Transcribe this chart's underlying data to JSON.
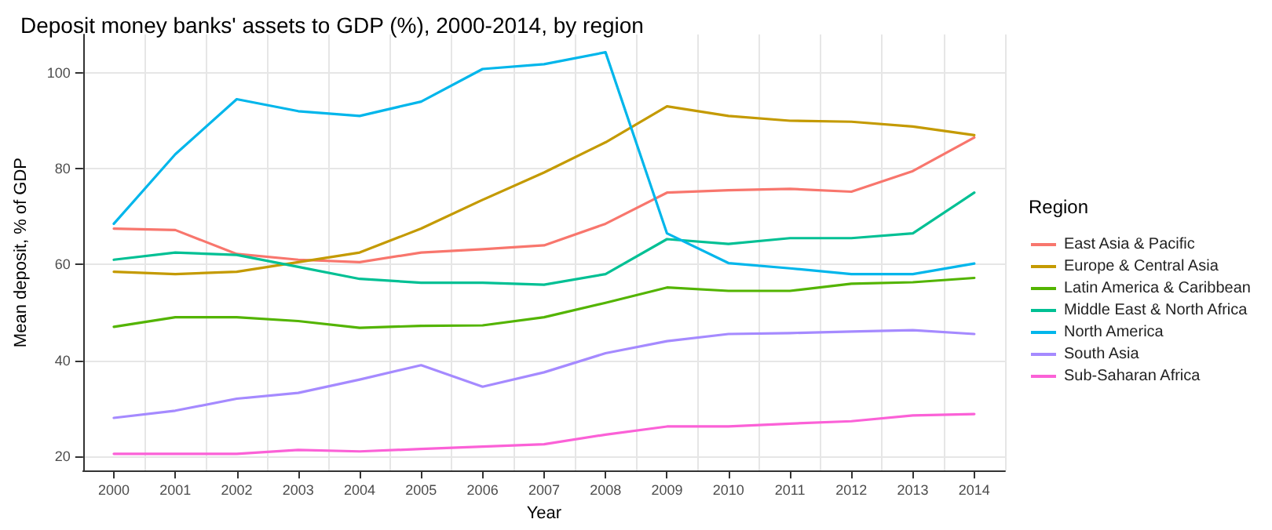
{
  "chart_data": {
    "type": "line",
    "title": "Deposit money banks' assets to GDP (%), 2000-2014, by region",
    "xlabel": "Year",
    "ylabel": "Mean deposit, % of GDP",
    "legend_title": "Region",
    "legend": "right",
    "grid": true,
    "marker": "none",
    "line_style": "solid",
    "categories": [
      "2000",
      "2001",
      "2002",
      "2003",
      "2004",
      "2005",
      "2006",
      "2007",
      "2008",
      "2009",
      "2010",
      "2011",
      "2012",
      "2013",
      "2014"
    ],
    "ylim": [
      17,
      108
    ],
    "yticks": [
      20,
      40,
      60,
      80,
      100
    ],
    "series": [
      {
        "name": "East Asia & Pacific",
        "color": "#f8766d",
        "values": [
          67.5,
          67.2,
          62.2,
          61,
          60.5,
          62.5,
          63.2,
          64,
          68.5,
          75,
          75.5,
          75.8,
          75.2,
          79.5,
          86.5
        ]
      },
      {
        "name": "Europe & Central Asia",
        "color": "#c49a00",
        "values": [
          58.5,
          58,
          58.5,
          60.5,
          62.5,
          67.5,
          73.5,
          79.2,
          85.5,
          93,
          91,
          90,
          89.8,
          88.8,
          87
        ]
      },
      {
        "name": "Latin America & Caribbean",
        "color": "#53b400",
        "values": [
          47,
          49,
          49,
          48.2,
          46.8,
          47.2,
          47.3,
          49,
          52,
          55.2,
          54.5,
          54.5,
          56,
          56.3,
          57.2
        ]
      },
      {
        "name": "Middle East & North Africa",
        "color": "#00c094",
        "values": [
          61,
          62.5,
          62,
          59.5,
          57,
          56.2,
          56.2,
          55.8,
          58,
          65.3,
          64.3,
          65.5,
          65.5,
          66.5,
          75
        ]
      },
      {
        "name": "North America",
        "color": "#00b6eb",
        "values": [
          68.5,
          83,
          94.5,
          92,
          91,
          94,
          100.8,
          101.8,
          104.3,
          66.5,
          60.3,
          59.2,
          58,
          58,
          60.2
        ]
      },
      {
        "name": "South Asia",
        "color": "#a58aff",
        "values": [
          28,
          29.5,
          32,
          33.2,
          36,
          39,
          34.5,
          37.5,
          41.5,
          44,
          45.5,
          45.7,
          46,
          46.3,
          45.5
        ]
      },
      {
        "name": "Sub-Saharan Africa",
        "color": "#fb61d7",
        "values": [
          20.5,
          20.5,
          20.5,
          21.3,
          21,
          21.5,
          22,
          22.5,
          24.5,
          26.2,
          26.2,
          26.8,
          27.3,
          28.5,
          28.8
        ]
      }
    ]
  }
}
